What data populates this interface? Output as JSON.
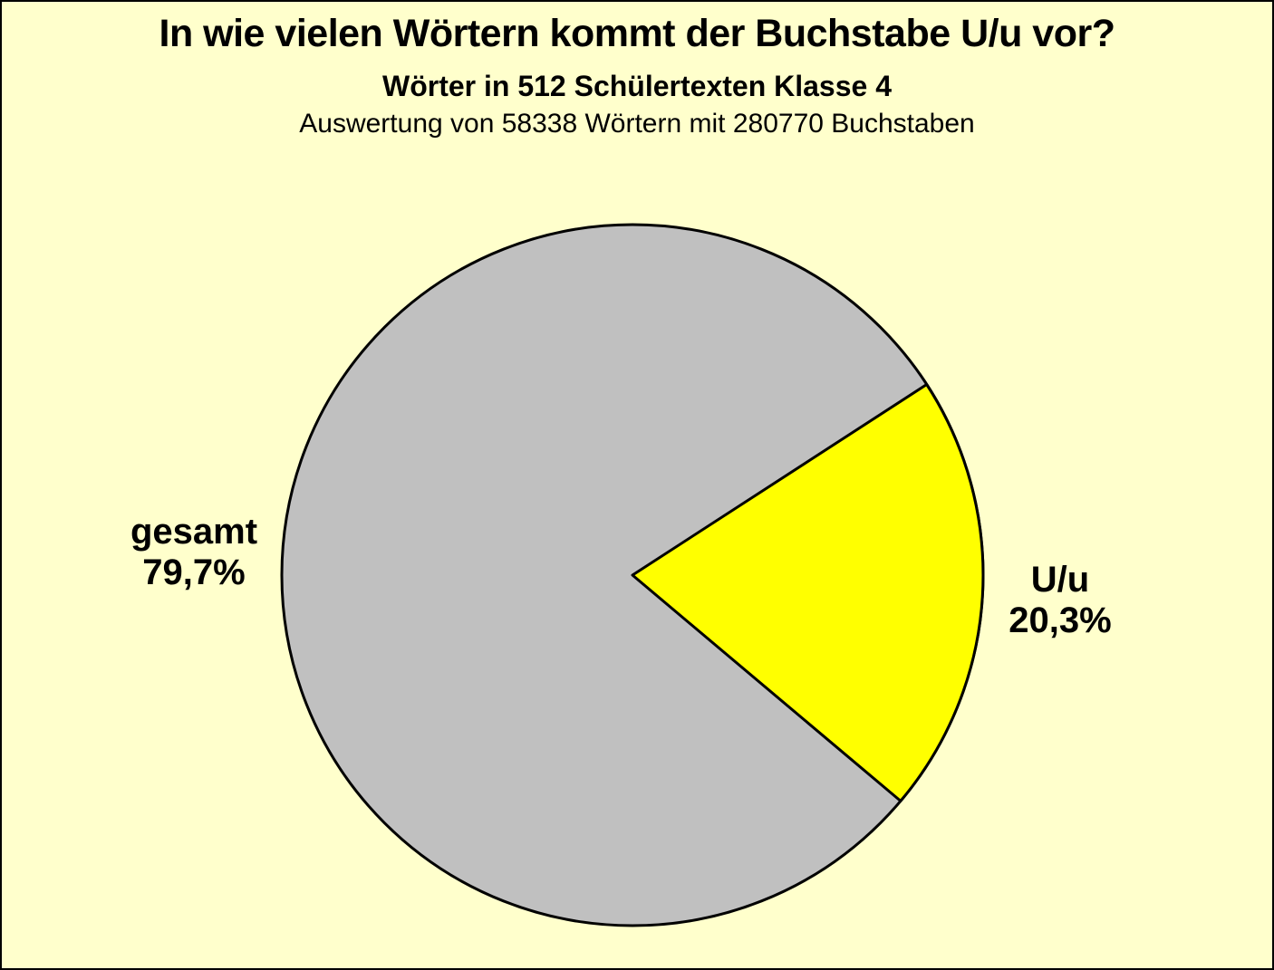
{
  "header": {
    "title": "In wie vielen Wörtern kommt der Buchstabe U/u vor?",
    "subtitle": "Wörter in 512 Schülertexten Klasse 4",
    "note": "Auswertung von 58338 Wörtern mit 280770 Buchstaben"
  },
  "labels": {
    "left": {
      "line1": "gesamt",
      "line2": "79,7%"
    },
    "right": {
      "line1": "U/u",
      "line2": "20,3%"
    }
  },
  "chart_data": {
    "type": "pie",
    "title": "In wie vielen Wörtern kommt der Buchstabe U/u vor?",
    "subtitle": "Wörter in 512 Schülertexten Klasse 4",
    "annotation": "Auswertung von 58338 Wörtern mit 280770 Buchstaben",
    "categories": [
      "gesamt",
      "U/u"
    ],
    "values": [
      79.7,
      20.3
    ],
    "value_labels": [
      "79,7%",
      "20,3%"
    ],
    "colors": [
      "#c0c0c0",
      "#ffff00"
    ],
    "stroke": {
      "color": "#000000",
      "width": 3
    },
    "background": "#ffffcc",
    "legend_position": "none",
    "label_placement": "outside",
    "layout": {
      "center": [
        696,
        633
      ],
      "radius": 387,
      "uu_slice_start_deg_cw_from_12": 57.05
    }
  }
}
